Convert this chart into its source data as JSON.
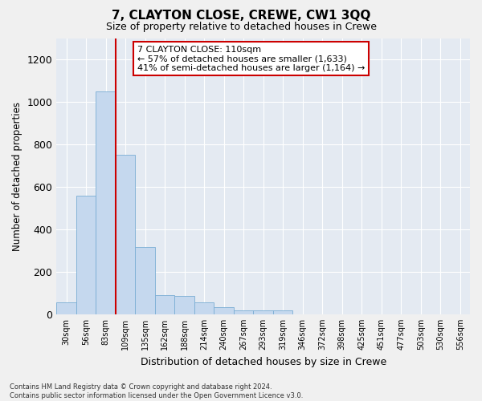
{
  "title": "7, CLAYTON CLOSE, CREWE, CW1 3QQ",
  "subtitle": "Size of property relative to detached houses in Crewe",
  "xlabel": "Distribution of detached houses by size in Crewe",
  "ylabel": "Number of detached properties",
  "bar_color": "#c5d8ee",
  "bar_edge_color": "#7aadd4",
  "bg_color": "#e4eaf2",
  "categories": [
    "30sqm",
    "56sqm",
    "83sqm",
    "109sqm",
    "135sqm",
    "162sqm",
    "188sqm",
    "214sqm",
    "240sqm",
    "267sqm",
    "293sqm",
    "319sqm",
    "346sqm",
    "372sqm",
    "398sqm",
    "425sqm",
    "451sqm",
    "477sqm",
    "503sqm",
    "530sqm",
    "556sqm"
  ],
  "values": [
    55,
    560,
    1050,
    750,
    315,
    90,
    85,
    55,
    35,
    20,
    20,
    20,
    0,
    0,
    0,
    0,
    0,
    0,
    0,
    0,
    0
  ],
  "vline_index": 3,
  "vline_color": "#cc0000",
  "annotation_text": "7 CLAYTON CLOSE: 110sqm\n← 57% of detached houses are smaller (1,633)\n41% of semi-detached houses are larger (1,164) →",
  "annotation_box_facecolor": "#ffffff",
  "annotation_box_edgecolor": "#cc0000",
  "footer": "Contains HM Land Registry data © Crown copyright and database right 2024.\nContains public sector information licensed under the Open Government Licence v3.0.",
  "ylim": [
    0,
    1300
  ],
  "yticks": [
    0,
    200,
    400,
    600,
    800,
    1000,
    1200
  ],
  "figsize": [
    6.0,
    5.0
  ],
  "dpi": 100
}
